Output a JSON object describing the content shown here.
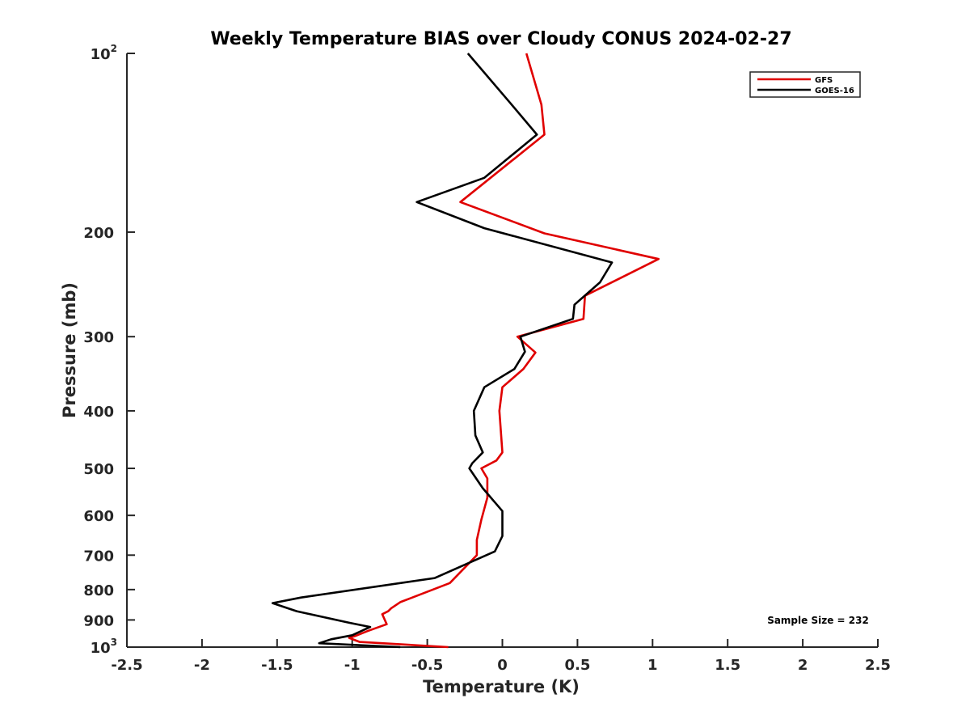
{
  "chart_data": {
    "type": "line",
    "title": "Weekly Temperature BIAS over Cloudy CONUS 2024-02-27",
    "xlabel": "Temperature (K)",
    "ylabel": "Pressure (mb)",
    "xlim": [
      -2.5,
      2.5
    ],
    "ylim": [
      1000,
      100
    ],
    "y_scale": "log",
    "y_reversed": true,
    "grid": false,
    "legend_position": "top-right",
    "x_ticks": [
      {
        "value": -2.5,
        "label": "-2.5"
      },
      {
        "value": -2,
        "label": "-2"
      },
      {
        "value": -1.5,
        "label": "-1.5"
      },
      {
        "value": -1,
        "label": "-1"
      },
      {
        "value": -0.5,
        "label": "-0.5"
      },
      {
        "value": 0,
        "label": "0"
      },
      {
        "value": 0.5,
        "label": "0.5"
      },
      {
        "value": 1,
        "label": "1"
      },
      {
        "value": 1.5,
        "label": "1.5"
      },
      {
        "value": 2,
        "label": "2"
      },
      {
        "value": 2.5,
        "label": "2.5"
      }
    ],
    "y_ticks": [
      {
        "value": 100,
        "base": "10",
        "exp": "2"
      },
      {
        "value": 200,
        "label": "200"
      },
      {
        "value": 300,
        "label": "300"
      },
      {
        "value": 400,
        "label": "400"
      },
      {
        "value": 500,
        "label": "500"
      },
      {
        "value": 600,
        "label": "600"
      },
      {
        "value": 700,
        "label": "700"
      },
      {
        "value": 800,
        "label": "800"
      },
      {
        "value": 900,
        "label": "900"
      },
      {
        "value": 1000,
        "base": "10",
        "exp": "3"
      }
    ],
    "series": [
      {
        "name": "GFS",
        "color": "#e00000",
        "points": [
          [
            0.16,
            100
          ],
          [
            0.26,
            122
          ],
          [
            0.28,
            137
          ],
          [
            -0.28,
            178
          ],
          [
            0.28,
            201
          ],
          [
            1.04,
            222
          ],
          [
            0.55,
            256
          ],
          [
            0.54,
            280
          ],
          [
            0.1,
            300
          ],
          [
            0.22,
            319
          ],
          [
            0.14,
            340
          ],
          [
            0.0,
            365
          ],
          [
            -0.02,
            400
          ],
          [
            0.0,
            470
          ],
          [
            -0.04,
            485
          ],
          [
            -0.14,
            500
          ],
          [
            -0.1,
            520
          ],
          [
            -0.1,
            560
          ],
          [
            -0.14,
            610
          ],
          [
            -0.17,
            660
          ],
          [
            -0.17,
            700
          ],
          [
            -0.35,
            780
          ],
          [
            -0.68,
            840
          ],
          [
            -0.74,
            860
          ],
          [
            -0.76,
            870
          ],
          [
            -0.8,
            880
          ],
          [
            -0.77,
            915
          ],
          [
            -0.9,
            940
          ],
          [
            -0.98,
            958
          ],
          [
            -1.02,
            965
          ],
          [
            -0.95,
            980
          ],
          [
            -0.36,
            1000
          ]
        ]
      },
      {
        "name": "GOES-16",
        "color": "#000000",
        "points": [
          [
            -0.23,
            100
          ],
          [
            0.05,
            121
          ],
          [
            0.23,
            137
          ],
          [
            -0.12,
            162
          ],
          [
            -0.57,
            178
          ],
          [
            -0.12,
            197
          ],
          [
            0.73,
            225
          ],
          [
            0.65,
            243
          ],
          [
            0.48,
            265
          ],
          [
            0.47,
            280
          ],
          [
            0.12,
            300
          ],
          [
            0.15,
            318
          ],
          [
            0.08,
            340
          ],
          [
            -0.12,
            365
          ],
          [
            -0.19,
            400
          ],
          [
            -0.18,
            440
          ],
          [
            -0.13,
            470
          ],
          [
            -0.2,
            490
          ],
          [
            -0.22,
            500
          ],
          [
            -0.13,
            540
          ],
          [
            0.0,
            590
          ],
          [
            0.0,
            650
          ],
          [
            -0.05,
            690
          ],
          [
            -0.45,
            765
          ],
          [
            -1.34,
            825
          ],
          [
            -1.53,
            843
          ],
          [
            -1.37,
            870
          ],
          [
            -1.02,
            910
          ],
          [
            -0.88,
            925
          ],
          [
            -1.0,
            955
          ],
          [
            -1.14,
            970
          ],
          [
            -1.22,
            985
          ],
          [
            -0.68,
            1000
          ]
        ]
      }
    ],
    "annotation": "Sample Size = 232"
  }
}
